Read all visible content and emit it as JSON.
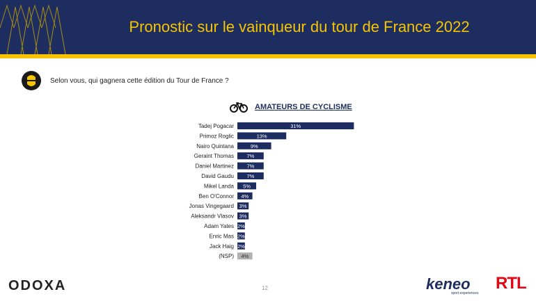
{
  "header": {
    "title": "Pronostic sur le vainqueur du tour de France 2022"
  },
  "question": {
    "text": "Selon vous, qui gagnera cette édition du Tour de France ?"
  },
  "section": {
    "title": "AMATEURS DE CYCLISME",
    "icon": "bicycle-icon"
  },
  "footer": {
    "odoxa_label": "ODOXA",
    "page_number": "12",
    "keneo_label": "keneo",
    "keneo_tagline": "sport experiences",
    "rtl_label": "RTL"
  },
  "colors": {
    "navy": "#1e2d5f",
    "yellow": "#f6c400",
    "bar": "#1e2d5f",
    "nsp_bar": "#b0b0b0"
  },
  "chart_data": {
    "type": "bar",
    "orientation": "horizontal",
    "categories": [
      "Tadej Pogacar",
      "Primoz Roglic",
      "Nairo Quintana",
      "Geraint Thomas",
      "Daniel Martinez",
      "David Gaudu",
      "Mikel Landa",
      "Ben O'Connor",
      "Jonas Vingegaard",
      "Aleksandr Vlasov",
      "Adam Yates",
      "Enric Mas",
      "Jack Haig",
      "(NSP)"
    ],
    "values": [
      31,
      13,
      9,
      7,
      7,
      7,
      5,
      4,
      3,
      3,
      2,
      2,
      2,
      4
    ],
    "labels": [
      "31%",
      "13%",
      "9%",
      "7%",
      "7%",
      "7%",
      "5%",
      "4%",
      "3%",
      "3%",
      "2%",
      "2%",
      "2%",
      "4%"
    ],
    "highlight_category": "(NSP)"
  }
}
